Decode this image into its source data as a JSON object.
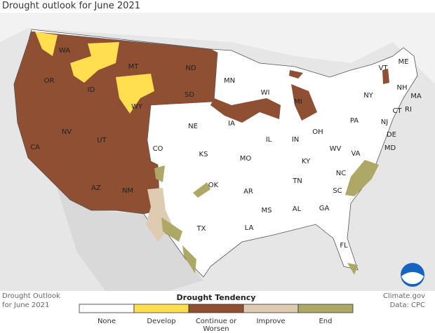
{
  "header": {
    "title": "Drought outlook for June 2021"
  },
  "states": [
    "WA",
    "OR",
    "CA",
    "NV",
    "ID",
    "MT",
    "WY",
    "UT",
    "AZ",
    "NM",
    "CO",
    "ND",
    "SD",
    "NE",
    "KS",
    "OK",
    "TX",
    "MN",
    "IA",
    "MO",
    "AR",
    "LA",
    "WI",
    "IL",
    "MS",
    "MI",
    "IN",
    "KY",
    "TN",
    "AL",
    "OH",
    "GA",
    "FL",
    "PA",
    "WV",
    "VA",
    "NC",
    "SC",
    "NY",
    "VT",
    "NH",
    "ME",
    "MA",
    "CT",
    "RI",
    "NJ",
    "DE",
    "MD"
  ],
  "footer": {
    "caption": [
      "Drought Outlook",
      "for June 2021"
    ],
    "credit": [
      "Climate.gov",
      "Data: CPC"
    ]
  },
  "legend": {
    "title": "Drought Tendency",
    "items": [
      {
        "label": [
          "None"
        ],
        "color": "#ffffff"
      },
      {
        "label": [
          "Develop"
        ],
        "color": "#ffde4f"
      },
      {
        "label": [
          "Continue or",
          "Worsen"
        ],
        "color": "#8e4f32"
      },
      {
        "label": [
          "Improve"
        ],
        "color": "#ddcbb2"
      },
      {
        "label": [
          "End"
        ],
        "color": "#aea866"
      }
    ]
  }
}
